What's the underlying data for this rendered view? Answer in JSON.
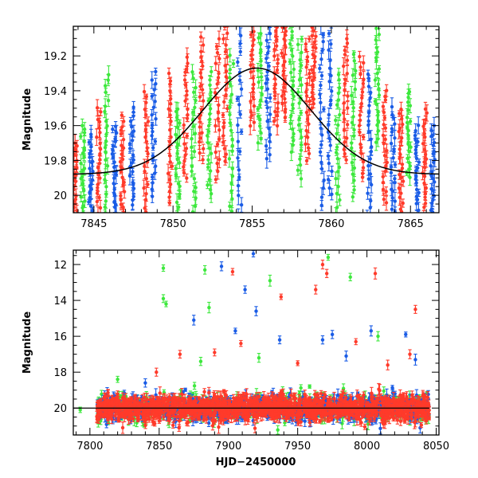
{
  "chart_data": [
    {
      "type": "scatter",
      "panel": "top",
      "title": "",
      "xlabel": "",
      "ylabel": "Magnitude",
      "xlim": [
        7843.7,
        7866.8
      ],
      "ylim": [
        20.1,
        19.03
      ],
      "y_inverted": true,
      "grid": false,
      "legend": "none",
      "x_ticks": [
        7845,
        7850,
        7855,
        7860,
        7865
      ],
      "y_ticks": [
        19.2,
        19.4,
        19.6,
        19.8,
        20
      ],
      "series_colors": {
        "red": "#ff3a2a",
        "green": "#3de83d",
        "blue": "#1a5ce6"
      },
      "model_curve": {
        "type": "line",
        "color": "#000000",
        "peak_x": 7855.3,
        "peak_mag": 19.27,
        "baseline_mag": 19.88,
        "width_days": 3.4
      },
      "observation_groups": [
        {
          "x": 7843.8,
          "color": "red",
          "mag_min": 19.7,
          "mag_max": 20.1
        },
        {
          "x": 7844.3,
          "color": "green",
          "mag_min": 19.6,
          "mag_max": 20.1
        },
        {
          "x": 7844.8,
          "color": "blue",
          "mag_min": 19.65,
          "mag_max": 20.1
        },
        {
          "x": 7845.3,
          "color": "red",
          "mag_min": 19.5,
          "mag_max": 20.1
        },
        {
          "x": 7845.8,
          "color": "green",
          "mag_min": 19.3,
          "mag_max": 20.1
        },
        {
          "x": 7846.3,
          "color": "blue",
          "mag_min": 19.6,
          "mag_max": 20.1
        },
        {
          "x": 7846.8,
          "color": "red",
          "mag_min": 19.55,
          "mag_max": 20.1
        },
        {
          "x": 7847.4,
          "color": "blue",
          "mag_min": 19.5,
          "mag_max": 20.05
        },
        {
          "x": 7848.3,
          "color": "red",
          "mag_min": 19.4,
          "mag_max": 20.1
        },
        {
          "x": 7848.8,
          "color": "blue",
          "mag_min": 19.3,
          "mag_max": 20.0
        },
        {
          "x": 7849.8,
          "color": "red",
          "mag_min": 19.3,
          "mag_max": 20.05
        },
        {
          "x": 7850.3,
          "color": "green",
          "mag_min": 19.5,
          "mag_max": 20.1
        },
        {
          "x": 7850.8,
          "color": "red",
          "mag_min": 19.2,
          "mag_max": 19.9
        },
        {
          "x": 7851.3,
          "color": "green",
          "mag_min": 19.3,
          "mag_max": 20.1
        },
        {
          "x": 7851.8,
          "color": "red",
          "mag_min": 19.1,
          "mag_max": 19.8
        },
        {
          "x": 7852.3,
          "color": "green",
          "mag_min": 19.3,
          "mag_max": 20.0
        },
        {
          "x": 7852.8,
          "color": "red",
          "mag_min": 19.1,
          "mag_max": 19.9
        },
        {
          "x": 7853.3,
          "color": "red",
          "mag_min": 19.03,
          "mag_max": 19.8
        },
        {
          "x": 7853.7,
          "color": "green",
          "mag_min": 19.2,
          "mag_max": 20.1
        },
        {
          "x": 7854.2,
          "color": "blue",
          "mag_min": 19.03,
          "mag_max": 20.1
        },
        {
          "x": 7855.0,
          "color": "red",
          "mag_min": 19.03,
          "mag_max": 19.6
        },
        {
          "x": 7855.5,
          "color": "green",
          "mag_min": 19.03,
          "mag_max": 19.7
        },
        {
          "x": 7856.0,
          "color": "blue",
          "mag_min": 19.03,
          "mag_max": 19.8
        },
        {
          "x": 7856.5,
          "color": "red",
          "mag_min": 19.03,
          "mag_max": 19.6
        },
        {
          "x": 7857.0,
          "color": "red",
          "mag_min": 19.03,
          "mag_max": 19.55
        },
        {
          "x": 7857.5,
          "color": "green",
          "mag_min": 19.03,
          "mag_max": 19.75
        },
        {
          "x": 7858.0,
          "color": "green",
          "mag_min": 19.1,
          "mag_max": 19.9
        },
        {
          "x": 7858.5,
          "color": "red",
          "mag_min": 19.1,
          "mag_max": 19.8
        },
        {
          "x": 7858.9,
          "color": "red",
          "mag_min": 19.03,
          "mag_max": 19.5
        },
        {
          "x": 7859.4,
          "color": "blue",
          "mag_min": 19.03,
          "mag_max": 20.05
        },
        {
          "x": 7859.9,
          "color": "blue",
          "mag_min": 19.03,
          "mag_max": 20.0
        },
        {
          "x": 7860.4,
          "color": "green",
          "mag_min": 19.3,
          "mag_max": 20.1
        },
        {
          "x": 7860.9,
          "color": "red",
          "mag_min": 19.1,
          "mag_max": 19.8
        },
        {
          "x": 7861.4,
          "color": "green",
          "mag_min": 19.2,
          "mag_max": 20.0
        },
        {
          "x": 7861.9,
          "color": "red",
          "mag_min": 19.2,
          "mag_max": 19.9
        },
        {
          "x": 7862.4,
          "color": "blue",
          "mag_min": 19.3,
          "mag_max": 20.1
        },
        {
          "x": 7862.9,
          "color": "green",
          "mag_min": 19.05,
          "mag_max": 19.7
        },
        {
          "x": 7863.4,
          "color": "red",
          "mag_min": 19.4,
          "mag_max": 20.05
        },
        {
          "x": 7863.9,
          "color": "blue",
          "mag_min": 19.5,
          "mag_max": 20.1
        },
        {
          "x": 7864.4,
          "color": "red",
          "mag_min": 19.5,
          "mag_max": 20.1
        },
        {
          "x": 7864.9,
          "color": "green",
          "mag_min": 19.4,
          "mag_max": 19.9
        },
        {
          "x": 7865.4,
          "color": "blue",
          "mag_min": 19.6,
          "mag_max": 20.1
        },
        {
          "x": 7865.9,
          "color": "red",
          "mag_min": 19.5,
          "mag_max": 20.1
        },
        {
          "x": 7866.4,
          "color": "blue",
          "mag_min": 19.6,
          "mag_max": 20.1
        }
      ]
    },
    {
      "type": "scatter",
      "panel": "bottom",
      "title": "",
      "xlabel": "HJD−2450000",
      "ylabel": "Magnitude",
      "xlim": [
        7788,
        8052
      ],
      "ylim": [
        21.5,
        11.2
      ],
      "y_inverted": true,
      "grid": false,
      "legend": "none",
      "x_ticks": [
        7800,
        7850,
        7900,
        7950,
        8000,
        8050
      ],
      "y_ticks": [
        12,
        14,
        16,
        18,
        20
      ],
      "series_colors": {
        "red": "#ff3a2a",
        "green": "#3de83d",
        "blue": "#1a5ce6"
      },
      "baseline_mag": 20.0,
      "baseline_range": [
        7788,
        8045
      ],
      "dense_band": {
        "x_start": 7805,
        "x_end": 8045,
        "mag_center": 20.0,
        "mag_spread": 0.7
      },
      "outliers": [
        {
          "x": 7793,
          "mag": 20.1,
          "color": "green"
        },
        {
          "x": 7853,
          "mag": 12.2,
          "color": "green"
        },
        {
          "x": 7853,
          "mag": 13.9,
          "color": "green"
        },
        {
          "x": 7855,
          "mag": 14.2,
          "color": "green"
        },
        {
          "x": 7883,
          "mag": 12.3,
          "color": "green"
        },
        {
          "x": 7886,
          "mag": 14.4,
          "color": "green"
        },
        {
          "x": 7895,
          "mag": 12.1,
          "color": "blue"
        },
        {
          "x": 7903,
          "mag": 12.4,
          "color": "red"
        },
        {
          "x": 7875,
          "mag": 15.1,
          "color": "blue"
        },
        {
          "x": 7912,
          "mag": 13.4,
          "color": "blue"
        },
        {
          "x": 7918,
          "mag": 11.4,
          "color": "blue"
        },
        {
          "x": 7920,
          "mag": 14.6,
          "color": "blue"
        },
        {
          "x": 7930,
          "mag": 12.9,
          "color": "green"
        },
        {
          "x": 7938,
          "mag": 13.8,
          "color": "red"
        },
        {
          "x": 7963,
          "mag": 13.4,
          "color": "red"
        },
        {
          "x": 7968,
          "mag": 12.0,
          "color": "red"
        },
        {
          "x": 7971,
          "mag": 12.5,
          "color": "red"
        },
        {
          "x": 7972,
          "mag": 11.6,
          "color": "green"
        },
        {
          "x": 7988,
          "mag": 12.7,
          "color": "green"
        },
        {
          "x": 8006,
          "mag": 12.5,
          "color": "red"
        },
        {
          "x": 8035,
          "mag": 14.5,
          "color": "red"
        },
        {
          "x": 7905,
          "mag": 15.7,
          "color": "blue"
        },
        {
          "x": 7909,
          "mag": 16.4,
          "color": "red"
        },
        {
          "x": 7937,
          "mag": 16.2,
          "color": "blue"
        },
        {
          "x": 7968,
          "mag": 16.2,
          "color": "blue"
        },
        {
          "x": 7975,
          "mag": 15.9,
          "color": "blue"
        },
        {
          "x": 7992,
          "mag": 16.3,
          "color": "red"
        },
        {
          "x": 8003,
          "mag": 15.7,
          "color": "blue"
        },
        {
          "x": 8008,
          "mag": 16.0,
          "color": "green"
        },
        {
          "x": 8028,
          "mag": 15.9,
          "color": "blue"
        },
        {
          "x": 8031,
          "mag": 17.0,
          "color": "red"
        },
        {
          "x": 8035,
          "mag": 17.3,
          "color": "blue"
        },
        {
          "x": 7865,
          "mag": 17.0,
          "color": "red"
        },
        {
          "x": 7880,
          "mag": 17.4,
          "color": "green"
        },
        {
          "x": 7890,
          "mag": 16.9,
          "color": "red"
        },
        {
          "x": 7922,
          "mag": 17.2,
          "color": "green"
        },
        {
          "x": 7950,
          "mag": 17.5,
          "color": "red"
        },
        {
          "x": 7985,
          "mag": 17.1,
          "color": "blue"
        },
        {
          "x": 8015,
          "mag": 17.6,
          "color": "red"
        },
        {
          "x": 7820,
          "mag": 18.4,
          "color": "green"
        },
        {
          "x": 7840,
          "mag": 18.6,
          "color": "blue"
        },
        {
          "x": 7848,
          "mag": 18.0,
          "color": "red"
        }
      ]
    }
  ]
}
